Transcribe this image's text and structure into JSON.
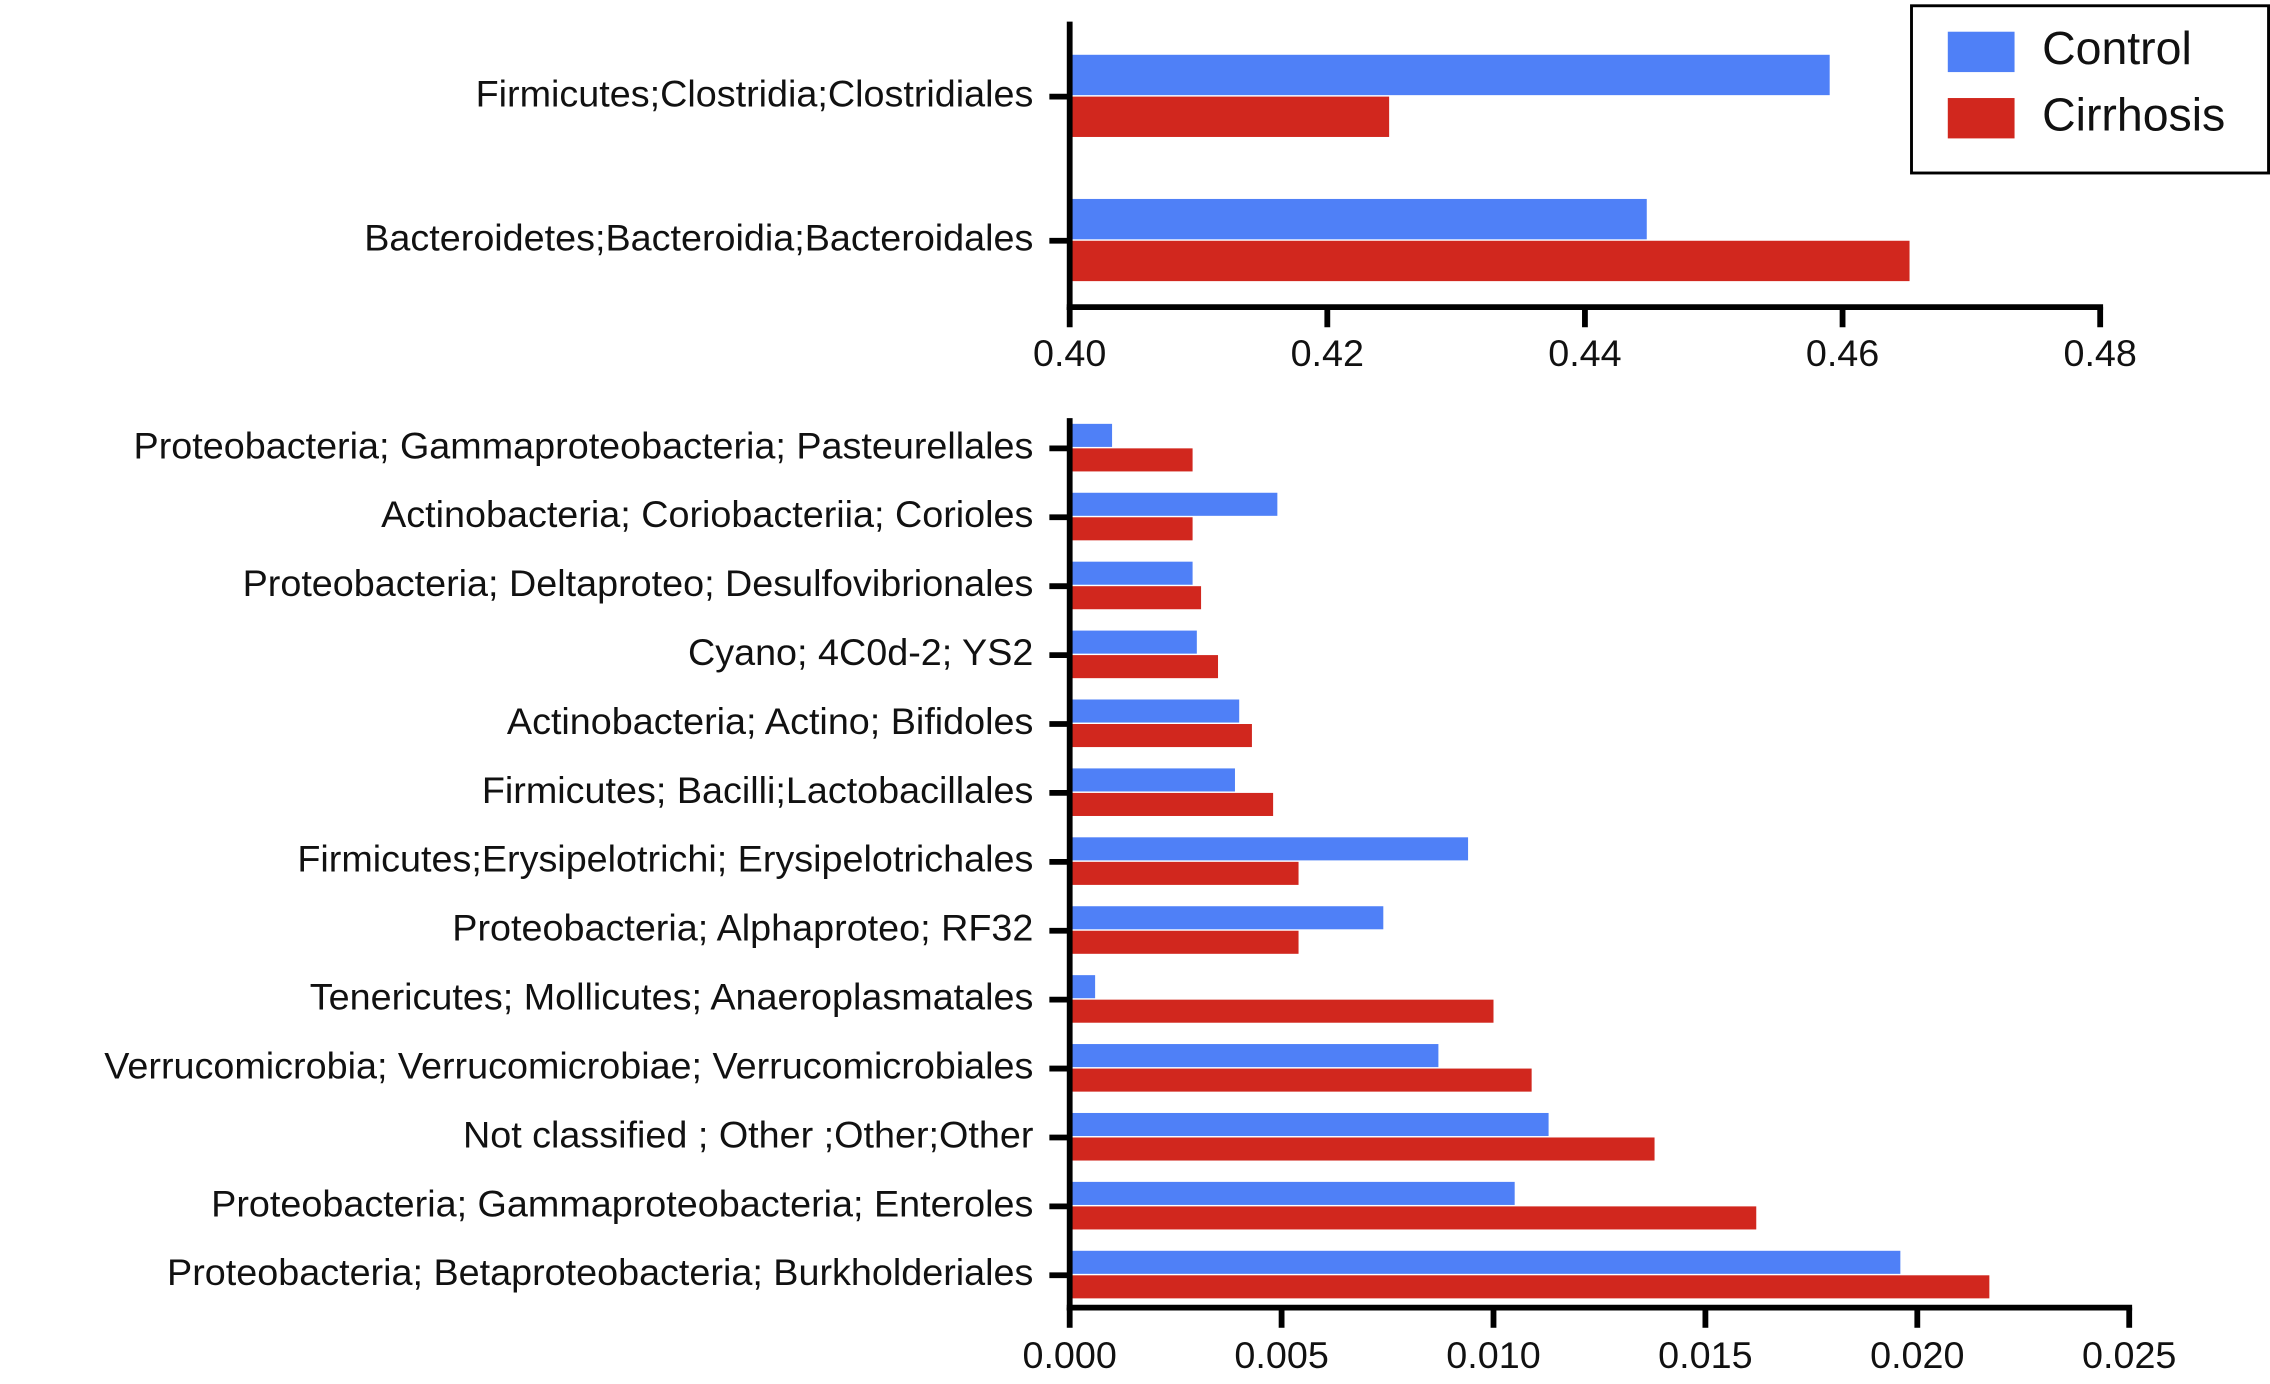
{
  "chart_data": [
    {
      "type": "barh",
      "categories": [
        "Firmicutes;Clostridia;Clostridiales",
        "Bacteroidetes;Bacteroidia;Bacteroidales"
      ],
      "series": [
        {
          "name": "Control",
          "color": "#4f80f7",
          "values": [
            0.459,
            0.4448
          ]
        },
        {
          "name": "Cirrhosis",
          "color": "#d1271e",
          "values": [
            0.4248,
            0.4652
          ]
        }
      ],
      "xlim": [
        0.4,
        0.48
      ],
      "xticks": [
        {
          "value": 0.4,
          "label": "0.40"
        },
        {
          "value": 0.42,
          "label": "0.42"
        },
        {
          "value": 0.44,
          "label": "0.44"
        },
        {
          "value": 0.46,
          "label": "0.46"
        },
        {
          "value": 0.48,
          "label": "0.48"
        }
      ],
      "legend": "upper right"
    },
    {
      "type": "barh",
      "categories": [
        "Proteobacteria; Gammaproteobacteria; Pasteurellales",
        "Actinobacteria; Coriobacteriia; Corioles",
        "Proteobacteria; Deltaproteo; Desulfovibrionales",
        "Cyano; 4C0d-2; YS2",
        "Actinobacteria; Actino; Bifidoles",
        "Firmicutes; Bacilli;Lactobacillales",
        "Firmicutes;Erysipelotrichi; Erysipelotrichales",
        "Proteobacteria;  Alphaproteo;  RF32",
        "Tenericutes; Mollicutes;  Anaeroplasmatales",
        "Verrucomicrobia; Verrucomicrobiae; Verrucomicrobiales",
        "Not classified  ; Other ;Other;Other",
        "Proteobacteria; Gammaproteobacteria; Enteroles",
        "Proteobacteria; Betaproteobacteria;  Burkholderiales"
      ],
      "series": [
        {
          "name": "Control",
          "color": "#4f80f7",
          "values": [
            0.001,
            0.0049,
            0.0029,
            0.003,
            0.004,
            0.0039,
            0.0094,
            0.0074,
            0.0006,
            0.0087,
            0.0113,
            0.0105,
            0.0196
          ]
        },
        {
          "name": "Cirrhosis",
          "color": "#d1271e",
          "values": [
            0.0029,
            0.0029,
            0.0031,
            0.0035,
            0.0043,
            0.0048,
            0.0054,
            0.0054,
            0.01,
            0.0109,
            0.0138,
            0.0162,
            0.0217
          ]
        }
      ],
      "xlim": [
        0,
        0.025
      ],
      "xticks": [
        {
          "value": 0,
          "label": "0.000"
        },
        {
          "value": 0.005,
          "label": "0.005"
        },
        {
          "value": 0.01,
          "label": "0.010"
        },
        {
          "value": 0.015,
          "label": "0.015"
        },
        {
          "value": 0.02,
          "label": "0.020"
        },
        {
          "value": 0.025,
          "label": "0.025"
        }
      ]
    }
  ]
}
